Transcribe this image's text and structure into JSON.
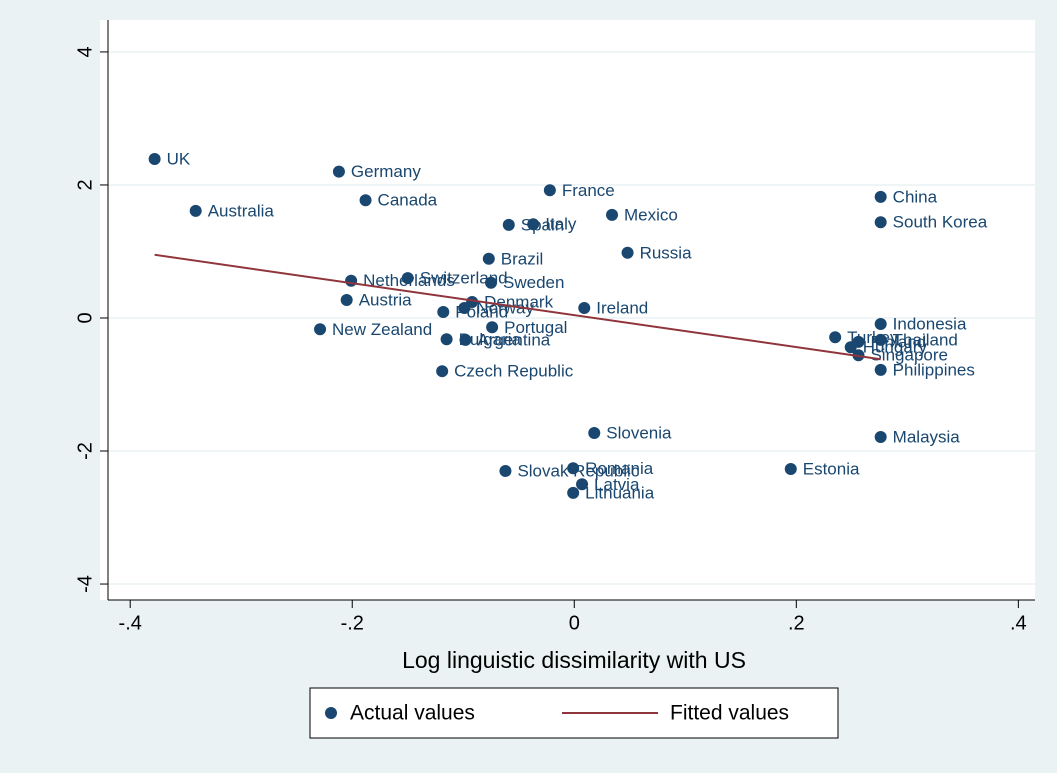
{
  "chart_data": {
    "type": "scatter",
    "xlabel": "Log linguistic dissimilarity with US",
    "xlim": [
      -0.42,
      0.415
    ],
    "ylim": [
      -4.24,
      4.48
    ],
    "xticks": [
      {
        "value": -0.4,
        "label": "-.4"
      },
      {
        "value": -0.2,
        "label": "-.2"
      },
      0,
      {
        "value": 0.2,
        "label": ".2"
      },
      {
        "value": 0.4,
        "label": ".4"
      }
    ],
    "yticks": [
      -4,
      -2,
      0,
      2,
      4
    ],
    "grid": true,
    "series": [
      {
        "name": "Actual values",
        "type": "scatter",
        "color": "#1a476f",
        "labels": [
          "UK",
          "Australia",
          "Germany",
          "Canada",
          "France",
          "Spain",
          "Italy",
          "Mexico",
          "Russia",
          "Brazil",
          "Switzerland",
          "Netherlands",
          "Sweden",
          "Austria",
          "Denmark",
          "Norway",
          "Poland",
          "Ireland",
          "New Zealand",
          "Portugal",
          "Bulgaria",
          "Argentina",
          "Czech Republic",
          "Slovenia",
          "Slovak Republic",
          "Romania",
          "Latvia",
          "Lithuania",
          "Estonia",
          "Malaysia",
          "China",
          "South Korea",
          "Indonesia",
          "Turkey",
          "Thailand",
          "Finland",
          "Hungary",
          "Singapore",
          "Philippines"
        ],
        "x": [
          -0.378,
          -0.341,
          -0.212,
          -0.188,
          -0.022,
          -0.059,
          -0.037,
          0.034,
          0.048,
          -0.077,
          -0.15,
          -0.201,
          -0.075,
          -0.205,
          -0.092,
          -0.099,
          -0.118,
          0.009,
          -0.229,
          -0.074,
          -0.115,
          -0.098,
          -0.119,
          0.018,
          -0.062,
          -0.001,
          0.007,
          -0.001,
          0.195,
          0.276,
          0.276,
          0.276,
          0.276,
          0.235,
          0.276,
          0.256,
          0.249,
          0.256,
          0.276
        ],
        "values": [
          2.39,
          1.61,
          2.2,
          1.77,
          1.92,
          1.4,
          1.41,
          1.55,
          0.98,
          0.89,
          0.6,
          0.56,
          0.53,
          0.27,
          0.24,
          0.15,
          0.09,
          0.15,
          -0.17,
          -0.14,
          -0.32,
          -0.33,
          -0.8,
          -1.73,
          -2.3,
          -2.26,
          -2.5,
          -2.63,
          -2.27,
          -1.79,
          1.82,
          1.44,
          -0.09,
          -0.29,
          -0.33,
          -0.36,
          -0.44,
          -0.56,
          -0.78
        ]
      },
      {
        "name": "Fitted values",
        "type": "line",
        "color": "#90353b",
        "x": [
          -0.378,
          0.276
        ],
        "values": [
          0.95,
          -0.62
        ]
      }
    ]
  }
}
